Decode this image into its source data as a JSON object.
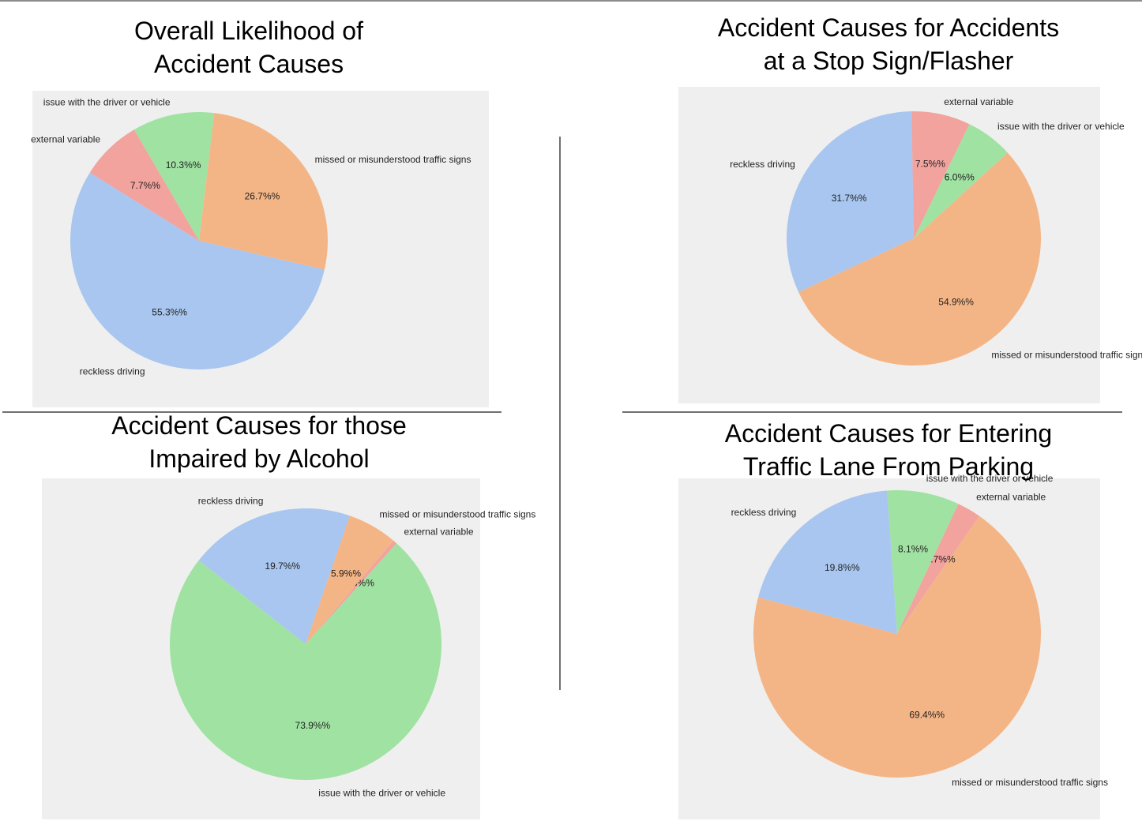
{
  "colors": {
    "reckless driving": "#a8c6ef",
    "missed or misunderstood traffic signs": "#f4b586",
    "issue with the driver or vehicle": "#a0e2a2",
    "external variable": "#f2a39e"
  },
  "chart_data": [
    {
      "type": "pie",
      "title_lines": [
        "Overall Likelihood of",
        "Accident Causes"
      ],
      "slices": [
        {
          "label": "reckless driving",
          "value": 55.3,
          "pct_label": "55.3%%"
        },
        {
          "label": "missed or misunderstood traffic signs",
          "value": 26.7,
          "pct_label": "26.7%%"
        },
        {
          "label": "issue with the driver or vehicle",
          "value": 10.3,
          "pct_label": "10.3%%"
        },
        {
          "label": "external variable",
          "value": 7.7,
          "pct_label": "7.7%%"
        }
      ]
    },
    {
      "type": "pie",
      "title_lines": [
        "Accident Causes for Accidents",
        "at a Stop Sign/Flasher"
      ],
      "slices": [
        {
          "label": "reckless driving",
          "value": 31.7,
          "pct_label": "31.7%%"
        },
        {
          "label": "missed or misunderstood traffic signs",
          "value": 54.9,
          "pct_label": "54.9%%"
        },
        {
          "label": "issue with the driver or vehicle",
          "value": 6.0,
          "pct_label": "6.0%%"
        },
        {
          "label": "external variable",
          "value": 7.5,
          "pct_label": "7.5%%"
        }
      ]
    },
    {
      "type": "pie",
      "title_lines": [
        "Accident Causes for those",
        "Impaired by Alcohol"
      ],
      "slices": [
        {
          "label": "reckless driving",
          "value": 19.7,
          "pct_label": "19.7%%"
        },
        {
          "label": "issue with the driver or vehicle",
          "value": 73.9,
          "pct_label": "73.9%%"
        },
        {
          "label": "external variable",
          "value": 0.5,
          "pct_label": "0.5%%"
        },
        {
          "label": "missed or misunderstood traffic signs",
          "value": 5.9,
          "pct_label": "5.9%%"
        }
      ]
    },
    {
      "type": "pie",
      "title_lines": [
        "Accident Causes for Entering",
        "Traffic Lane From Parking"
      ],
      "slices": [
        {
          "label": "reckless driving",
          "value": 19.8,
          "pct_label": "19.8%%"
        },
        {
          "label": "missed or misunderstood traffic signs",
          "value": 69.4,
          "pct_label": "69.4%%"
        },
        {
          "label": "external variable",
          "value": 2.7,
          "pct_label": "2.7%%"
        },
        {
          "label": "issue with the driver or vehicle",
          "value": 8.1,
          "pct_label": "8.1%%"
        }
      ]
    }
  ]
}
